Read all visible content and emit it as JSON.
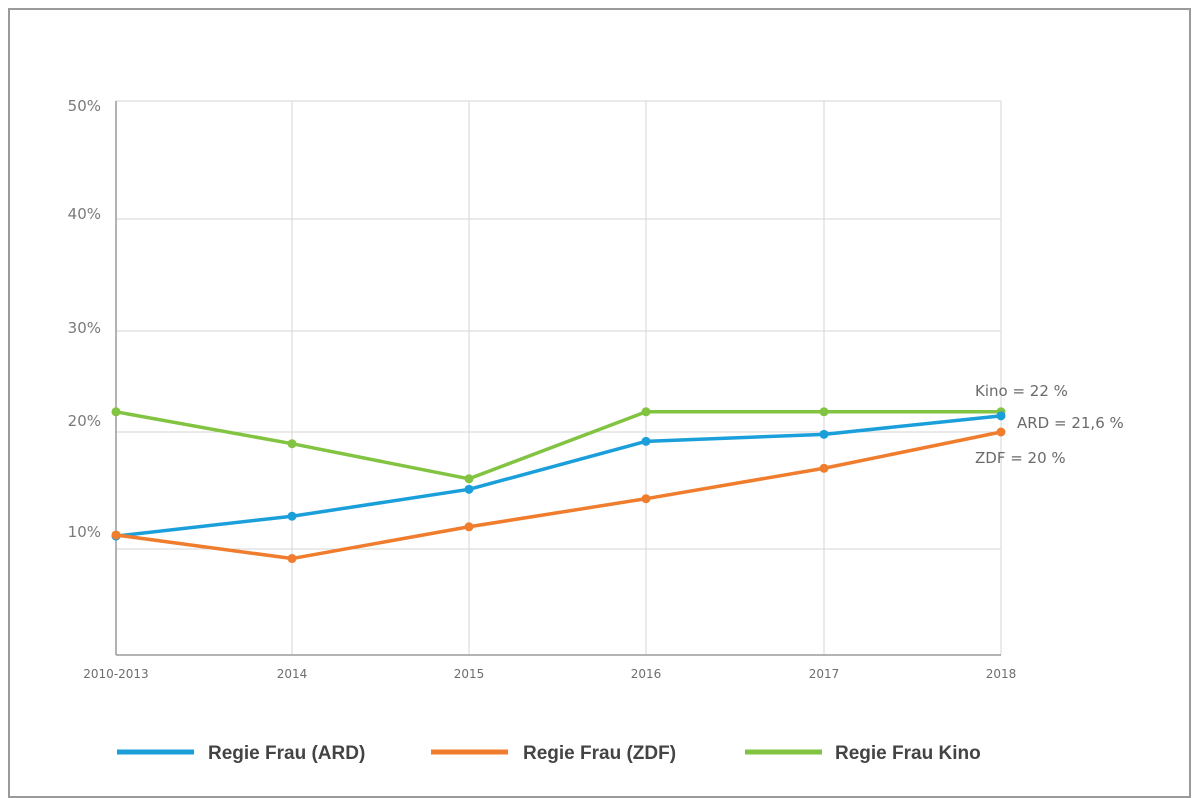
{
  "chart_data": {
    "type": "line",
    "categories": [
      "2010-2013",
      "2014",
      "2015",
      "2016",
      "2017",
      "2018"
    ],
    "y_ticks": [
      "10%",
      "20%",
      "30%",
      "40%",
      "50%"
    ],
    "ylim": [
      0,
      50
    ],
    "grid": true,
    "legend_position": "bottom",
    "title": "",
    "xlabel": "",
    "ylabel": "",
    "series": [
      {
        "name": "Regie Frau (ARD)",
        "color": "#1a9fdb",
        "values": [
          11.1,
          12.8,
          15.1,
          19.2,
          19.8,
          21.6
        ]
      },
      {
        "name": "Regie Frau (ZDF)",
        "color": "#ef7d2d",
        "values": [
          11.2,
          9.1,
          11.9,
          14.3,
          16.9,
          20.0
        ]
      },
      {
        "name": "Regie Frau Kino",
        "color": "#82c341",
        "values": [
          22.0,
          19.0,
          16.0,
          22.0,
          22.0,
          22.0
        ]
      }
    ],
    "annotations": [
      {
        "series": 2,
        "text": "Kino = 22 %"
      },
      {
        "series": 0,
        "text": "ARD = 21,6 %"
      },
      {
        "series": 1,
        "text": "ZDF = 20 %"
      }
    ]
  }
}
